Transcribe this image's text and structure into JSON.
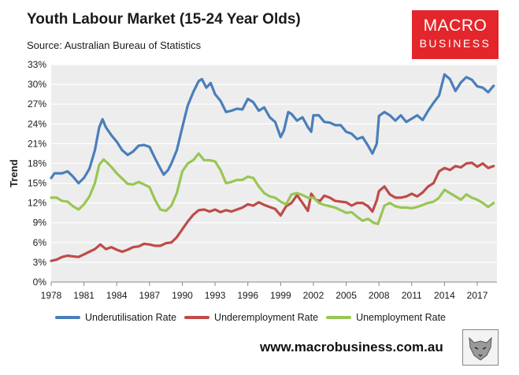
{
  "header": {
    "title": "Youth Labour Market (15-24 Year Olds)",
    "subtitle": "Source: Australian Bureau of Statistics"
  },
  "logo": {
    "line1": "MACRO",
    "line2": "BUSINESS"
  },
  "footer": {
    "website": "www.macrobusiness.com.au"
  },
  "colors": {
    "underutilisation": "#4a7ebb",
    "underemployment": "#be4b48",
    "unemployment": "#98c654",
    "plot_background": "#ededed",
    "logo_background": "#e3262b"
  },
  "chart_data": {
    "type": "line",
    "title": "Youth Labour Market (15-24 Year Olds)",
    "subtitle": "Source: Australian Bureau of Statistics",
    "xlabel": "",
    "ylabel": "Trend",
    "xlim": [
      1978,
      2018.8
    ],
    "ylim": [
      0,
      33
    ],
    "x_ticks": [
      "1978",
      "1981",
      "1984",
      "1987",
      "1990",
      "1993",
      "1996",
      "1999",
      "2002",
      "2005",
      "2008",
      "2011",
      "2014",
      "2017"
    ],
    "y_ticks": [
      "0%",
      "3%",
      "6%",
      "9%",
      "12%",
      "15%",
      "18%",
      "21%",
      "24%",
      "27%",
      "30%",
      "33%"
    ],
    "grid": true,
    "legend_position": "bottom",
    "series": [
      {
        "name": "Underutilisation Rate",
        "color": "#4a7ebb",
        "points": [
          [
            1978.0,
            15.8
          ],
          [
            1978.3,
            16.5
          ],
          [
            1979.0,
            16.5
          ],
          [
            1979.5,
            16.8
          ],
          [
            1980.0,
            16.0
          ],
          [
            1980.5,
            15.0
          ],
          [
            1981.0,
            15.8
          ],
          [
            1981.5,
            17.2
          ],
          [
            1982.0,
            20.0
          ],
          [
            1982.4,
            23.5
          ],
          [
            1982.7,
            24.7
          ],
          [
            1983.0,
            23.5
          ],
          [
            1983.5,
            22.3
          ],
          [
            1984.0,
            21.3
          ],
          [
            1984.5,
            20.0
          ],
          [
            1985.0,
            19.3
          ],
          [
            1985.5,
            19.8
          ],
          [
            1986.0,
            20.7
          ],
          [
            1986.5,
            20.8
          ],
          [
            1987.0,
            20.5
          ],
          [
            1987.5,
            18.8
          ],
          [
            1988.0,
            17.2
          ],
          [
            1988.3,
            16.3
          ],
          [
            1988.7,
            17.0
          ],
          [
            1989.0,
            18.0
          ],
          [
            1989.5,
            20.0
          ],
          [
            1990.0,
            23.5
          ],
          [
            1990.5,
            26.8
          ],
          [
            1991.0,
            28.8
          ],
          [
            1991.5,
            30.5
          ],
          [
            1991.8,
            30.8
          ],
          [
            1992.2,
            29.5
          ],
          [
            1992.6,
            30.2
          ],
          [
            1993.0,
            28.5
          ],
          [
            1993.5,
            27.5
          ],
          [
            1994.0,
            25.8
          ],
          [
            1994.5,
            26.0
          ],
          [
            1995.0,
            26.3
          ],
          [
            1995.5,
            26.2
          ],
          [
            1996.0,
            27.8
          ],
          [
            1996.5,
            27.3
          ],
          [
            1997.0,
            26.0
          ],
          [
            1997.5,
            26.5
          ],
          [
            1998.0,
            25.0
          ],
          [
            1998.5,
            24.3
          ],
          [
            1999.0,
            22.0
          ],
          [
            1999.3,
            23.0
          ],
          [
            1999.7,
            25.8
          ],
          [
            2000.0,
            25.5
          ],
          [
            2000.5,
            24.5
          ],
          [
            2001.0,
            25.0
          ],
          [
            2001.5,
            23.5
          ],
          [
            2001.8,
            22.8
          ],
          [
            2002.0,
            25.3
          ],
          [
            2002.5,
            25.3
          ],
          [
            2003.0,
            24.3
          ],
          [
            2003.5,
            24.2
          ],
          [
            2004.0,
            23.8
          ],
          [
            2004.5,
            23.8
          ],
          [
            2005.0,
            22.8
          ],
          [
            2005.5,
            22.5
          ],
          [
            2006.0,
            21.7
          ],
          [
            2006.5,
            22.0
          ],
          [
            2007.0,
            20.7
          ],
          [
            2007.4,
            19.5
          ],
          [
            2007.8,
            21.0
          ],
          [
            2008.0,
            25.2
          ],
          [
            2008.5,
            25.8
          ],
          [
            2009.0,
            25.3
          ],
          [
            2009.5,
            24.5
          ],
          [
            2010.0,
            25.3
          ],
          [
            2010.5,
            24.3
          ],
          [
            2011.0,
            24.8
          ],
          [
            2011.5,
            25.3
          ],
          [
            2012.0,
            24.6
          ],
          [
            2012.5,
            26.0
          ],
          [
            2013.0,
            27.2
          ],
          [
            2013.5,
            28.3
          ],
          [
            2014.0,
            31.5
          ],
          [
            2014.5,
            30.8
          ],
          [
            2015.0,
            29.0
          ],
          [
            2015.5,
            30.3
          ],
          [
            2016.0,
            31.1
          ],
          [
            2016.5,
            30.7
          ],
          [
            2017.0,
            29.7
          ],
          [
            2017.5,
            29.5
          ],
          [
            2018.0,
            28.8
          ],
          [
            2018.5,
            29.8
          ]
        ]
      },
      {
        "name": "Underemployment Rate",
        "color": "#be4b48",
        "points": [
          [
            1978.0,
            3.2
          ],
          [
            1978.5,
            3.4
          ],
          [
            1979.0,
            3.8
          ],
          [
            1979.5,
            4.0
          ],
          [
            1980.0,
            3.9
          ],
          [
            1980.5,
            3.8
          ],
          [
            1981.0,
            4.2
          ],
          [
            1981.5,
            4.6
          ],
          [
            1982.0,
            5.0
          ],
          [
            1982.5,
            5.7
          ],
          [
            1983.0,
            5.0
          ],
          [
            1983.5,
            5.3
          ],
          [
            1984.0,
            4.9
          ],
          [
            1984.5,
            4.6
          ],
          [
            1985.0,
            4.9
          ],
          [
            1985.5,
            5.3
          ],
          [
            1986.0,
            5.4
          ],
          [
            1986.5,
            5.8
          ],
          [
            1987.0,
            5.7
          ],
          [
            1987.5,
            5.5
          ],
          [
            1988.0,
            5.5
          ],
          [
            1988.5,
            5.9
          ],
          [
            1989.0,
            6.0
          ],
          [
            1989.5,
            6.8
          ],
          [
            1990.0,
            8.0
          ],
          [
            1990.5,
            9.2
          ],
          [
            1991.0,
            10.2
          ],
          [
            1991.5,
            10.9
          ],
          [
            1992.0,
            11.0
          ],
          [
            1992.5,
            10.7
          ],
          [
            1993.0,
            11.0
          ],
          [
            1993.5,
            10.6
          ],
          [
            1994.0,
            10.9
          ],
          [
            1994.5,
            10.7
          ],
          [
            1995.0,
            11.0
          ],
          [
            1995.5,
            11.3
          ],
          [
            1996.0,
            11.8
          ],
          [
            1996.5,
            11.6
          ],
          [
            1997.0,
            12.1
          ],
          [
            1997.5,
            11.7
          ],
          [
            1998.0,
            11.4
          ],
          [
            1998.5,
            11.1
          ],
          [
            1999.0,
            10.1
          ],
          [
            1999.5,
            11.5
          ],
          [
            2000.0,
            12.0
          ],
          [
            2000.5,
            13.2
          ],
          [
            2001.0,
            12.0
          ],
          [
            2001.5,
            10.8
          ],
          [
            2001.8,
            13.4
          ],
          [
            2002.2,
            12.5
          ],
          [
            2002.6,
            12.3
          ],
          [
            2003.0,
            13.1
          ],
          [
            2003.5,
            12.8
          ],
          [
            2004.0,
            12.3
          ],
          [
            2004.5,
            12.2
          ],
          [
            2005.0,
            12.1
          ],
          [
            2005.5,
            11.6
          ],
          [
            2006.0,
            12.0
          ],
          [
            2006.5,
            12.0
          ],
          [
            2007.0,
            11.5
          ],
          [
            2007.4,
            10.7
          ],
          [
            2007.8,
            12.4
          ],
          [
            2008.0,
            13.8
          ],
          [
            2008.5,
            14.5
          ],
          [
            2009.0,
            13.3
          ],
          [
            2009.5,
            12.8
          ],
          [
            2010.0,
            12.8
          ],
          [
            2010.5,
            13.0
          ],
          [
            2011.0,
            13.4
          ],
          [
            2011.5,
            13.0
          ],
          [
            2012.0,
            13.6
          ],
          [
            2012.5,
            14.5
          ],
          [
            2013.0,
            15.0
          ],
          [
            2013.5,
            16.8
          ],
          [
            2014.0,
            17.3
          ],
          [
            2014.5,
            17.0
          ],
          [
            2015.0,
            17.6
          ],
          [
            2015.5,
            17.4
          ],
          [
            2016.0,
            18.0
          ],
          [
            2016.5,
            18.1
          ],
          [
            2017.0,
            17.5
          ],
          [
            2017.5,
            18.0
          ],
          [
            2018.0,
            17.3
          ],
          [
            2018.5,
            17.6
          ]
        ]
      },
      {
        "name": "Unemployment Rate",
        "color": "#98c654",
        "points": [
          [
            1978.0,
            12.8
          ],
          [
            1978.5,
            12.8
          ],
          [
            1979.0,
            12.3
          ],
          [
            1979.5,
            12.2
          ],
          [
            1980.0,
            11.5
          ],
          [
            1980.5,
            11.0
          ],
          [
            1981.0,
            11.8
          ],
          [
            1981.5,
            13.0
          ],
          [
            1982.0,
            15.0
          ],
          [
            1982.4,
            17.8
          ],
          [
            1982.8,
            18.6
          ],
          [
            1983.2,
            18.0
          ],
          [
            1983.6,
            17.3
          ],
          [
            1984.0,
            16.5
          ],
          [
            1984.5,
            15.7
          ],
          [
            1985.0,
            14.9
          ],
          [
            1985.5,
            14.8
          ],
          [
            1986.0,
            15.2
          ],
          [
            1986.5,
            14.8
          ],
          [
            1987.0,
            14.4
          ],
          [
            1987.5,
            12.5
          ],
          [
            1988.0,
            11.0
          ],
          [
            1988.5,
            10.8
          ],
          [
            1989.0,
            11.6
          ],
          [
            1989.5,
            13.5
          ],
          [
            1990.0,
            16.8
          ],
          [
            1990.5,
            18.0
          ],
          [
            1991.0,
            18.5
          ],
          [
            1991.5,
            19.5
          ],
          [
            1992.0,
            18.5
          ],
          [
            1992.5,
            18.5
          ],
          [
            1993.0,
            18.3
          ],
          [
            1993.5,
            17.0
          ],
          [
            1994.0,
            15.0
          ],
          [
            1994.5,
            15.2
          ],
          [
            1995.0,
            15.5
          ],
          [
            1995.5,
            15.5
          ],
          [
            1996.0,
            16.0
          ],
          [
            1996.5,
            15.8
          ],
          [
            1997.0,
            14.5
          ],
          [
            1997.5,
            13.5
          ],
          [
            1998.0,
            13.0
          ],
          [
            1998.5,
            12.8
          ],
          [
            1999.0,
            12.2
          ],
          [
            1999.5,
            11.8
          ],
          [
            2000.0,
            13.3
          ],
          [
            2000.5,
            13.5
          ],
          [
            2001.0,
            13.2
          ],
          [
            2001.5,
            12.8
          ],
          [
            2002.0,
            12.8
          ],
          [
            2002.5,
            12.0
          ],
          [
            2003.0,
            11.7
          ],
          [
            2003.5,
            11.5
          ],
          [
            2004.0,
            11.3
          ],
          [
            2004.5,
            10.9
          ],
          [
            2005.0,
            10.5
          ],
          [
            2005.5,
            10.6
          ],
          [
            2006.0,
            9.9
          ],
          [
            2006.5,
            9.3
          ],
          [
            2007.0,
            9.6
          ],
          [
            2007.5,
            9.0
          ],
          [
            2007.9,
            8.8
          ],
          [
            2008.2,
            10.2
          ],
          [
            2008.5,
            11.6
          ],
          [
            2009.0,
            12.0
          ],
          [
            2009.5,
            11.5
          ],
          [
            2010.0,
            11.3
          ],
          [
            2010.5,
            11.3
          ],
          [
            2011.0,
            11.2
          ],
          [
            2011.5,
            11.4
          ],
          [
            2012.0,
            11.7
          ],
          [
            2012.5,
            12.0
          ],
          [
            2013.0,
            12.2
          ],
          [
            2013.5,
            12.8
          ],
          [
            2014.0,
            14.0
          ],
          [
            2014.5,
            13.5
          ],
          [
            2015.0,
            13.0
          ],
          [
            2015.5,
            12.5
          ],
          [
            2016.0,
            13.3
          ],
          [
            2016.5,
            12.8
          ],
          [
            2017.0,
            12.5
          ],
          [
            2017.5,
            12.0
          ],
          [
            2018.0,
            11.4
          ],
          [
            2018.5,
            12.0
          ]
        ]
      }
    ]
  }
}
